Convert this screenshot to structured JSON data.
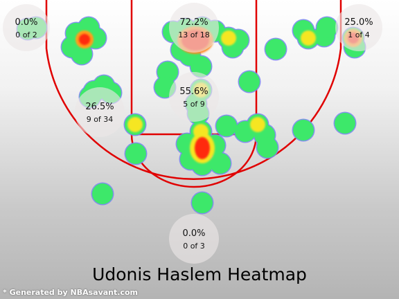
{
  "chart_data": {
    "type": "heatmap",
    "title": "Udonis Haslem Heatmap",
    "credit": "* Generated by NBAsavant.com",
    "colors": {
      "court_lines": "#e00000",
      "cool": "#3de86a",
      "warm": "#f5e620",
      "hot": "#ff2a10",
      "zone_overlay": "#ece6e6"
    },
    "zones": [
      {
        "name": "left-corner-three",
        "pct": "0.0%",
        "made_of_attempts": "0 of 2",
        "made": 0,
        "attempts": 2
      },
      {
        "name": "paint-top",
        "pct": "72.2%",
        "made_of_attempts": "13 of 18",
        "made": 13,
        "attempts": 18
      },
      {
        "name": "right-corner-three",
        "pct": "25.0%",
        "made_of_attempts": "1 of 4",
        "made": 1,
        "attempts": 4
      },
      {
        "name": "left-midrange",
        "pct": "26.5%",
        "made_of_attempts": "9 of 34",
        "made": 9,
        "attempts": 34
      },
      {
        "name": "paint-middle",
        "pct": "55.6%",
        "made_of_attempts": "5 of 9",
        "made": 5,
        "attempts": 9
      },
      {
        "name": "top-of-key-three",
        "pct": "0.0%",
        "made_of_attempts": "0 of 3",
        "made": 0,
        "attempts": 3
      }
    ]
  }
}
